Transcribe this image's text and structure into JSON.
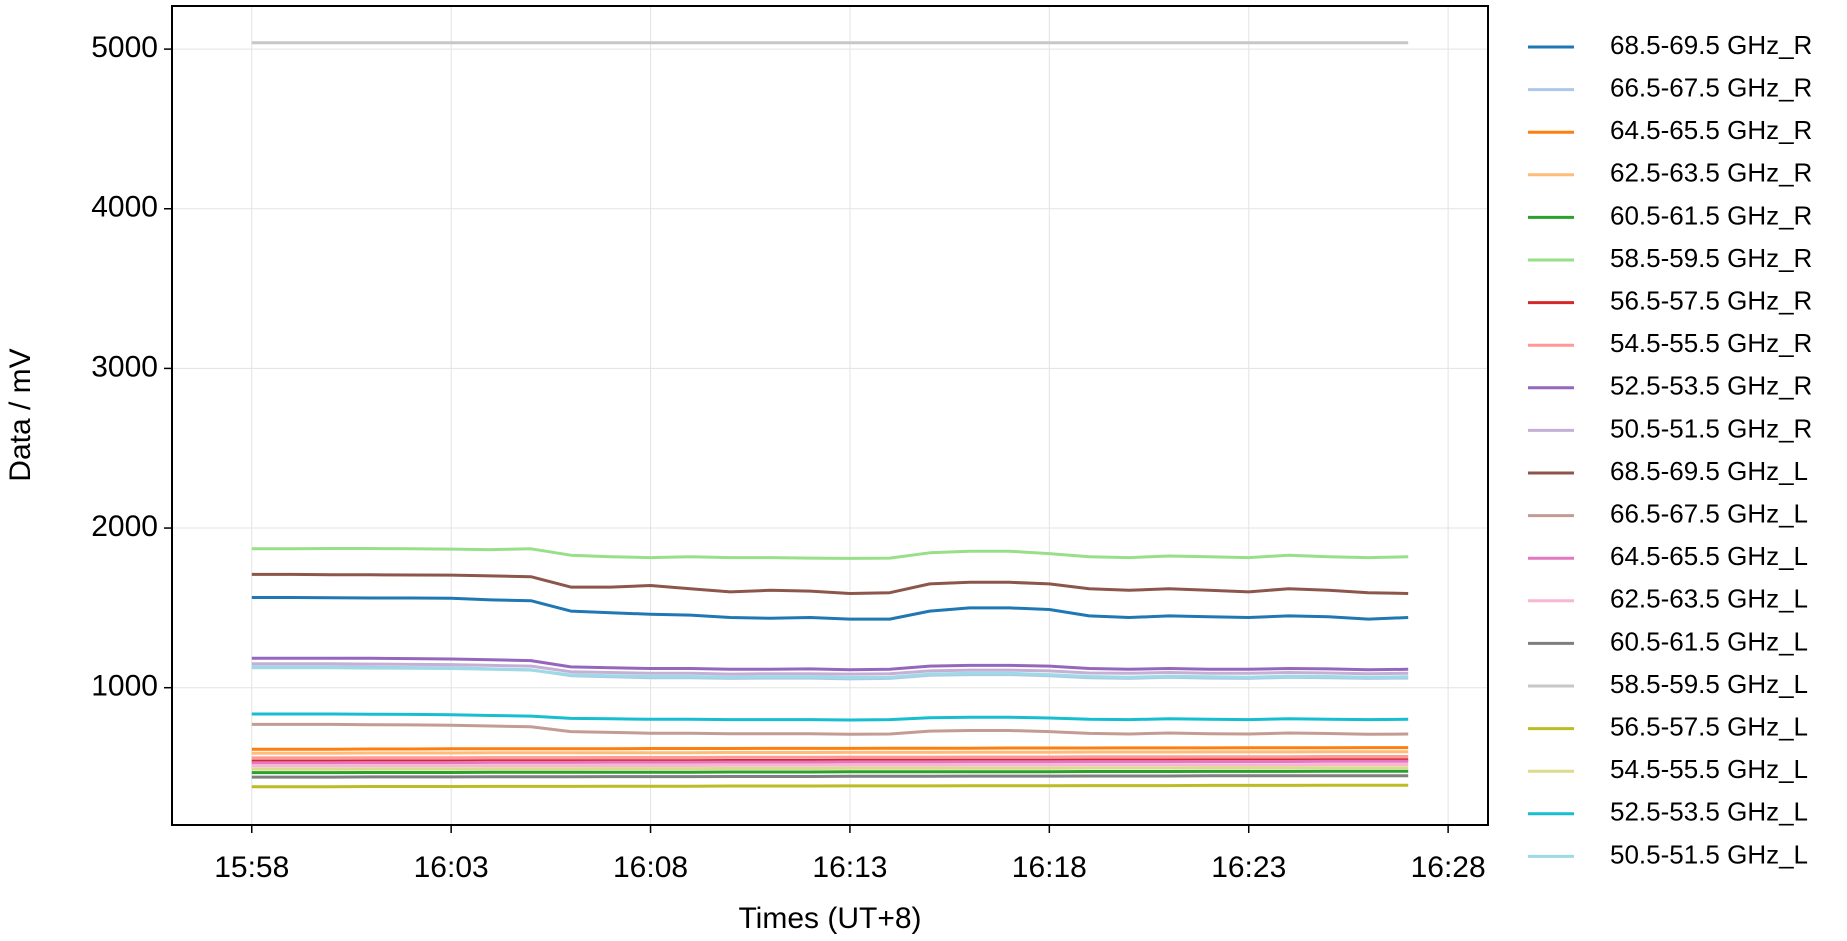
{
  "chart_data": {
    "type": "line",
    "xlabel": "Times (UT+8)",
    "ylabel": "Data / mV",
    "x": [
      "15:58",
      "15:59",
      "16:00",
      "16:01",
      "16:02",
      "16:03",
      "16:04",
      "16:05",
      "16:06",
      "16:07",
      "16:08",
      "16:09",
      "16:10",
      "16:11",
      "16:12",
      "16:13",
      "16:14",
      "16:15",
      "16:16",
      "16:17",
      "16:18",
      "16:19",
      "16:20",
      "16:21",
      "16:22",
      "16:23",
      "16:24",
      "16:25",
      "16:26",
      "16:27"
    ],
    "xlim": [
      "15:56",
      "16:29"
    ],
    "xticks": [
      "15:58",
      "16:03",
      "16:08",
      "16:13",
      "16:18",
      "16:23",
      "16:28"
    ],
    "ylim": [
      140,
      5270
    ],
    "yticks": [
      1000,
      2000,
      3000,
      4000,
      5000
    ],
    "grid": true,
    "legend": "outside right",
    "series": [
      {
        "name": "68.5-69.5 GHz_R",
        "color": "#1f77b4",
        "values": [
          1565,
          1565,
          1563,
          1562,
          1562,
          1560,
          1550,
          1545,
          1480,
          1470,
          1460,
          1455,
          1440,
          1435,
          1440,
          1430,
          1430,
          1480,
          1500,
          1500,
          1490,
          1450,
          1440,
          1450,
          1445,
          1440,
          1450,
          1445,
          1430,
          1440
        ]
      },
      {
        "name": "66.5-67.5 GHz_R",
        "color": "#aec7e8",
        "values": [
          1130,
          1130,
          1130,
          1128,
          1126,
          1125,
          1118,
          1112,
          1075,
          1068,
          1062,
          1062,
          1058,
          1060,
          1060,
          1055,
          1058,
          1078,
          1082,
          1082,
          1075,
          1062,
          1058,
          1065,
          1060,
          1058,
          1065,
          1062,
          1058,
          1060
        ]
      },
      {
        "name": "64.5-65.5 GHz_R",
        "color": "#ff7f0e",
        "values": [
          615,
          615,
          615,
          616,
          616,
          617,
          617,
          618,
          618,
          618,
          619,
          619,
          619,
          620,
          620,
          620,
          621,
          621,
          621,
          622,
          622,
          622,
          623,
          623,
          623,
          624,
          624,
          624,
          625,
          625
        ]
      },
      {
        "name": "62.5-63.5 GHz_R",
        "color": "#ffbb78",
        "values": [
          590,
          590,
          590,
          591,
          591,
          591,
          592,
          592,
          592,
          593,
          593,
          593,
          594,
          594,
          594,
          595,
          595,
          595,
          596,
          596,
          596,
          597,
          597,
          597,
          598,
          598,
          598,
          599,
          599,
          599
        ]
      },
      {
        "name": "60.5-61.5 GHz_R",
        "color": "#2ca02c",
        "values": [
          468,
          468,
          468,
          469,
          469,
          469,
          470,
          470,
          470,
          471,
          471,
          471,
          472,
          472,
          472,
          473,
          473,
          473,
          474,
          474,
          474,
          475,
          475,
          475,
          476,
          476,
          476,
          477,
          477,
          477
        ]
      },
      {
        "name": "58.5-59.5 GHz_R",
        "color": "#98df8a",
        "values": [
          1870,
          1870,
          1872,
          1872,
          1870,
          1868,
          1865,
          1870,
          1830,
          1820,
          1815,
          1820,
          1815,
          1815,
          1812,
          1810,
          1812,
          1845,
          1855,
          1855,
          1840,
          1820,
          1815,
          1825,
          1820,
          1815,
          1830,
          1820,
          1815,
          1820
        ]
      },
      {
        "name": "56.5-57.5 GHz_R",
        "color": "#d62728",
        "values": [
          540,
          540,
          540,
          541,
          541,
          541,
          542,
          542,
          542,
          543,
          543,
          543,
          544,
          544,
          544,
          545,
          545,
          545,
          546,
          546,
          546,
          547,
          547,
          547,
          548,
          548,
          548,
          549,
          549,
          549
        ]
      },
      {
        "name": "54.5-55.5 GHz_R",
        "color": "#ff9896",
        "values": [
          560,
          560,
          560,
          561,
          561,
          561,
          562,
          562,
          562,
          563,
          563,
          563,
          564,
          564,
          564,
          565,
          565,
          565,
          566,
          566,
          566,
          567,
          567,
          567,
          568,
          568,
          568,
          569,
          569,
          569
        ]
      },
      {
        "name": "52.5-53.5 GHz_R",
        "color": "#9467bd",
        "values": [
          1185,
          1185,
          1185,
          1184,
          1182,
          1180,
          1175,
          1170,
          1130,
          1125,
          1120,
          1120,
          1115,
          1115,
          1118,
          1112,
          1115,
          1135,
          1140,
          1140,
          1135,
          1120,
          1115,
          1120,
          1115,
          1115,
          1120,
          1118,
          1112,
          1115
        ]
      },
      {
        "name": "50.5-51.5 GHz_R",
        "color": "#c5b0d5",
        "values": [
          1150,
          1150,
          1150,
          1148,
          1146,
          1145,
          1140,
          1135,
          1100,
          1095,
          1090,
          1090,
          1085,
          1088,
          1088,
          1085,
          1088,
          1105,
          1110,
          1110,
          1105,
          1092,
          1090,
          1095,
          1090,
          1090,
          1095,
          1092,
          1088,
          1090
        ]
      },
      {
        "name": "68.5-69.5 GHz_L",
        "color": "#8c564b",
        "values": [
          1710,
          1710,
          1708,
          1707,
          1706,
          1705,
          1700,
          1695,
          1630,
          1630,
          1640,
          1620,
          1600,
          1610,
          1605,
          1590,
          1595,
          1650,
          1660,
          1660,
          1650,
          1620,
          1610,
          1620,
          1610,
          1600,
          1620,
          1610,
          1595,
          1590
        ]
      },
      {
        "name": "66.5-67.5 GHz_L",
        "color": "#c49c94",
        "values": [
          770,
          770,
          770,
          768,
          767,
          765,
          760,
          755,
          725,
          720,
          715,
          715,
          712,
          712,
          712,
          708,
          710,
          728,
          732,
          732,
          725,
          714,
          710,
          716,
          712,
          710,
          716,
          713,
          708,
          710
        ]
      },
      {
        "name": "64.5-65.5 GHz_L",
        "color": "#e377c2",
        "values": [
          530,
          530,
          530,
          531,
          531,
          531,
          532,
          532,
          532,
          533,
          533,
          533,
          534,
          534,
          534,
          535,
          535,
          535,
          536,
          536,
          536,
          537,
          537,
          537,
          538,
          538,
          538,
          539,
          539,
          539
        ]
      },
      {
        "name": "62.5-63.5 GHz_L",
        "color": "#f7b6d2",
        "values": [
          510,
          510,
          510,
          511,
          511,
          511,
          512,
          512,
          512,
          513,
          513,
          513,
          514,
          514,
          514,
          515,
          515,
          515,
          516,
          516,
          516,
          517,
          517,
          517,
          518,
          518,
          518,
          519,
          519,
          519
        ]
      },
      {
        "name": "60.5-61.5 GHz_L",
        "color": "#7f7f7f",
        "values": [
          440,
          440,
          440,
          441,
          441,
          441,
          442,
          442,
          442,
          443,
          443,
          443,
          444,
          444,
          444,
          445,
          445,
          445,
          446,
          446,
          446,
          447,
          447,
          447,
          448,
          448,
          448,
          449,
          449,
          449
        ]
      },
      {
        "name": "58.5-59.5 GHz_L",
        "color": "#c7c7c7",
        "values": [
          5040,
          5040,
          5040,
          5040,
          5040,
          5040,
          5040,
          5040,
          5040,
          5040,
          5040,
          5040,
          5040,
          5040,
          5040,
          5040,
          5040,
          5040,
          5040,
          5040,
          5040,
          5040,
          5040,
          5040,
          5040,
          5040,
          5040,
          5040,
          5040,
          5040
        ]
      },
      {
        "name": "56.5-57.5 GHz_L",
        "color": "#bcbd22",
        "values": [
          380,
          380,
          380,
          381,
          381,
          381,
          382,
          382,
          382,
          383,
          383,
          383,
          384,
          384,
          384,
          385,
          385,
          385,
          386,
          386,
          386,
          387,
          387,
          387,
          388,
          388,
          388,
          389,
          389,
          389
        ]
      },
      {
        "name": "54.5-55.5 GHz_L",
        "color": "#dbdb8d",
        "values": [
          490,
          490,
          490,
          491,
          491,
          491,
          492,
          492,
          492,
          493,
          493,
          493,
          494,
          494,
          494,
          495,
          495,
          495,
          496,
          496,
          496,
          497,
          497,
          497,
          498,
          498,
          498,
          499,
          499,
          499
        ]
      },
      {
        "name": "52.5-53.5 GHz_L",
        "color": "#17becf",
        "values": [
          835,
          835,
          835,
          834,
          833,
          830,
          826,
          822,
          808,
          805,
          802,
          802,
          800,
          800,
          800,
          798,
          800,
          812,
          815,
          815,
          810,
          802,
          800,
          805,
          802,
          800,
          806,
          803,
          800,
          802
        ]
      },
      {
        "name": "50.5-51.5 GHz_L",
        "color": "#9edae5",
        "values": [
          1125,
          1125,
          1125,
          1123,
          1122,
          1120,
          1115,
          1110,
          1080,
          1075,
          1070,
          1070,
          1066,
          1068,
          1068,
          1064,
          1066,
          1085,
          1090,
          1090,
          1082,
          1070,
          1066,
          1072,
          1068,
          1066,
          1072,
          1070,
          1066,
          1068
        ]
      }
    ]
  }
}
